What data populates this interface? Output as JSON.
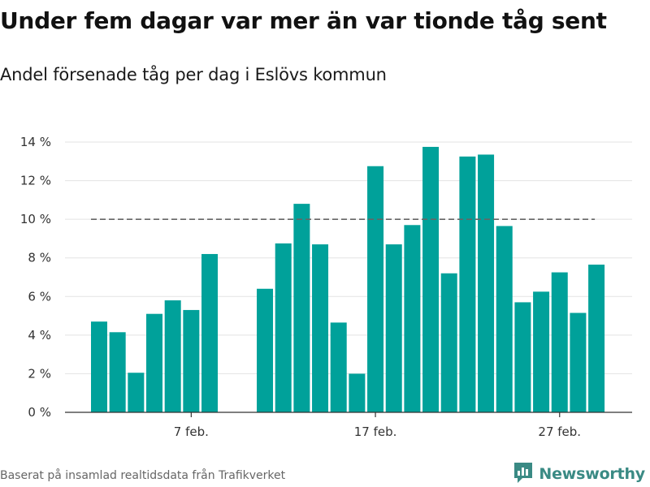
{
  "title": "Under fem dagar var mer än var tionde tåg sent",
  "subtitle": "Andel försenade tåg per dag i Eslövs kommun",
  "footer": {
    "source": "Baserat på insamlad realtidsdata från Trafikverket",
    "brand": "Newsworthy",
    "brand_icon": "newsworthy-logo-icon"
  },
  "colors": {
    "bar": "#00a19a",
    "reference_line": "#666666",
    "grid": "#e3e3e3",
    "axis": "#333333",
    "brand": "#3a8a84"
  },
  "chart_data": {
    "type": "bar",
    "x_type": "date",
    "x": [
      "2019-02-02",
      "2019-02-03",
      "2019-02-04",
      "2019-02-05",
      "2019-02-06",
      "2019-02-07",
      "2019-02-08",
      "2019-02-09",
      "2019-02-10",
      "2019-02-11",
      "2019-02-12",
      "2019-02-13",
      "2019-02-14",
      "2019-02-15",
      "2019-02-16",
      "2019-02-17",
      "2019-02-18",
      "2019-02-19",
      "2019-02-20",
      "2019-02-21",
      "2019-02-22",
      "2019-02-23",
      "2019-02-24",
      "2019-02-25",
      "2019-02-26",
      "2019-02-27",
      "2019-02-28",
      "2019-03-01"
    ],
    "values": [
      4.7,
      4.15,
      2.05,
      5.1,
      5.8,
      5.3,
      8.2,
      null,
      null,
      6.4,
      8.75,
      10.8,
      8.7,
      4.65,
      2.0,
      12.75,
      8.7,
      9.7,
      13.75,
      7.2,
      13.25,
      13.35,
      9.65,
      5.7,
      6.25,
      7.25,
      5.15,
      7.65
    ],
    "x_ticks": [
      {
        "date": "2019-02-07",
        "label": "7 feb."
      },
      {
        "date": "2019-02-17",
        "label": "17 feb."
      },
      {
        "date": "2019-02-27",
        "label": "27 feb."
      }
    ],
    "y_ticks": [
      {
        "value": 0,
        "label": "0 %"
      },
      {
        "value": 2,
        "label": "2 %"
      },
      {
        "value": 4,
        "label": "4 %"
      },
      {
        "value": 6,
        "label": "6 %"
      },
      {
        "value": 8,
        "label": "8 %"
      },
      {
        "value": 10,
        "label": "10 %"
      },
      {
        "value": 12,
        "label": "12 %"
      },
      {
        "value": 14,
        "label": "14 %"
      }
    ],
    "ylim": [
      0,
      14
    ],
    "reference_line": {
      "value": 10,
      "style": "dashed"
    },
    "grid": true,
    "legend": "none",
    "title": "Under fem dagar var mer än var tionde tåg sent",
    "subtitle": "Andel försenade tåg per dag i Eslövs kommun",
    "xlabel": "",
    "ylabel": ""
  }
}
